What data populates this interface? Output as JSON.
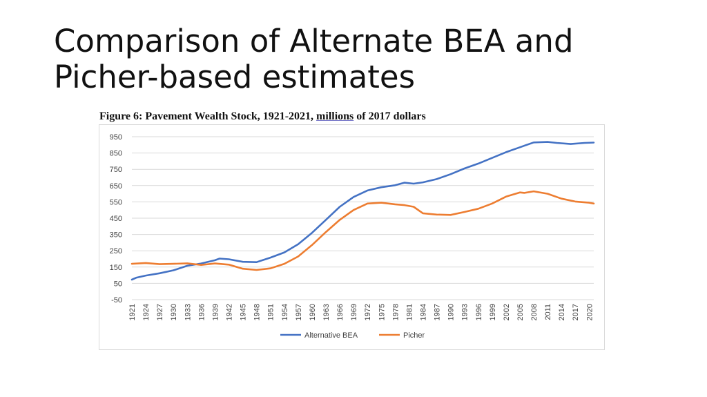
{
  "slide": {
    "title_line1": "Comparison of Alternate BEA and",
    "title_line2": "Picher-based estimates"
  },
  "figure": {
    "caption_prefix": "Figure 6: Pavement Wealth Stock, 1921-2021, ",
    "caption_underlined": "millions",
    "caption_suffix": " of 2017 dollars"
  },
  "chart_data": {
    "type": "line",
    "title": "Figure 6: Pavement Wealth Stock, 1921-2021, millions of 2017 dollars",
    "xlabel": "",
    "ylabel": "",
    "ylim": [
      -50,
      950
    ],
    "y_ticks": [
      950,
      850,
      750,
      650,
      550,
      450,
      350,
      250,
      150,
      50,
      -50
    ],
    "x_ticks": [
      1921,
      1924,
      1927,
      1930,
      1933,
      1936,
      1939,
      1942,
      1945,
      1948,
      1951,
      1954,
      1957,
      1960,
      1963,
      1966,
      1969,
      1972,
      1975,
      1978,
      1981,
      1984,
      1987,
      1990,
      1993,
      1996,
      1999,
      2002,
      2005,
      2008,
      2011,
      2014,
      2017,
      2020
    ],
    "xlim": [
      1921,
      2021
    ],
    "grid": true,
    "legend_position": "bottom",
    "series": [
      {
        "name": "Alternative BEA",
        "color": "#4472C4",
        "x": [
          1921,
          1922,
          1924,
          1927,
          1930,
          1933,
          1936,
          1939,
          1940,
          1942,
          1945,
          1948,
          1951,
          1954,
          1957,
          1960,
          1963,
          1966,
          1969,
          1972,
          1975,
          1978,
          1980,
          1982,
          1984,
          1987,
          1990,
          1993,
          1996,
          1999,
          2002,
          2005,
          2008,
          2011,
          2013,
          2016,
          2019,
          2021
        ],
        "values": [
          73,
          85,
          98,
          112,
          130,
          158,
          172,
          192,
          202,
          198,
          182,
          180,
          208,
          240,
          290,
          360,
          440,
          520,
          580,
          620,
          640,
          652,
          668,
          662,
          670,
          690,
          720,
          755,
          785,
          820,
          855,
          885,
          915,
          918,
          912,
          905,
          912,
          914
        ]
      },
      {
        "name": "Picher",
        "color": "#ED7D31",
        "x": [
          1921,
          1924,
          1927,
          1930,
          1933,
          1936,
          1939,
          1942,
          1945,
          1948,
          1951,
          1954,
          1957,
          1960,
          1963,
          1966,
          1969,
          1972,
          1975,
          1978,
          1980,
          1982,
          1984,
          1987,
          1990,
          1993,
          1996,
          1999,
          2002,
          2005,
          2006,
          2008,
          2011,
          2014,
          2017,
          2020,
          2021
        ],
        "values": [
          170,
          175,
          168,
          170,
          173,
          163,
          172,
          165,
          140,
          132,
          142,
          170,
          215,
          285,
          365,
          440,
          500,
          540,
          545,
          535,
          530,
          520,
          480,
          472,
          470,
          488,
          508,
          540,
          582,
          608,
          605,
          615,
          600,
          570,
          552,
          545,
          540
        ]
      }
    ]
  }
}
